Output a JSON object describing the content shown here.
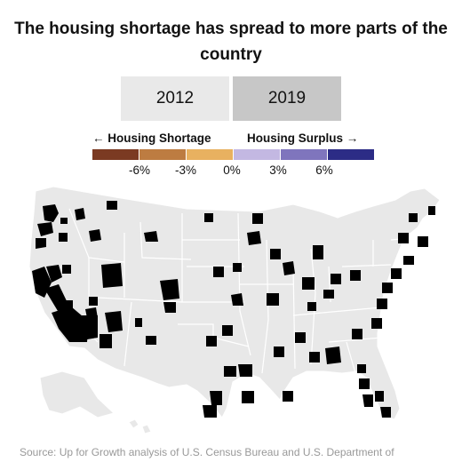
{
  "title": "The housing shortage has spread to more parts of the country",
  "toggle": {
    "options": [
      "2012",
      "2019"
    ],
    "selected": "2019"
  },
  "legend": {
    "left_heading": "← Housing Shortage",
    "right_heading": "Housing Surplus →",
    "ticks": [
      "-6%",
      "-3%",
      "0%",
      "3%",
      "6%"
    ],
    "colors": [
      "#7b3a22",
      "#bd7c41",
      "#e8b160",
      "#c3b8e2",
      "#7f75bd",
      "#2c2c86"
    ]
  },
  "map_colors": {
    "base": "#e8e8e8",
    "border": "#ffffff"
  },
  "source": "Source: Up for Growth analysis of U.S. Census Bureau and U.S. Department of"
}
